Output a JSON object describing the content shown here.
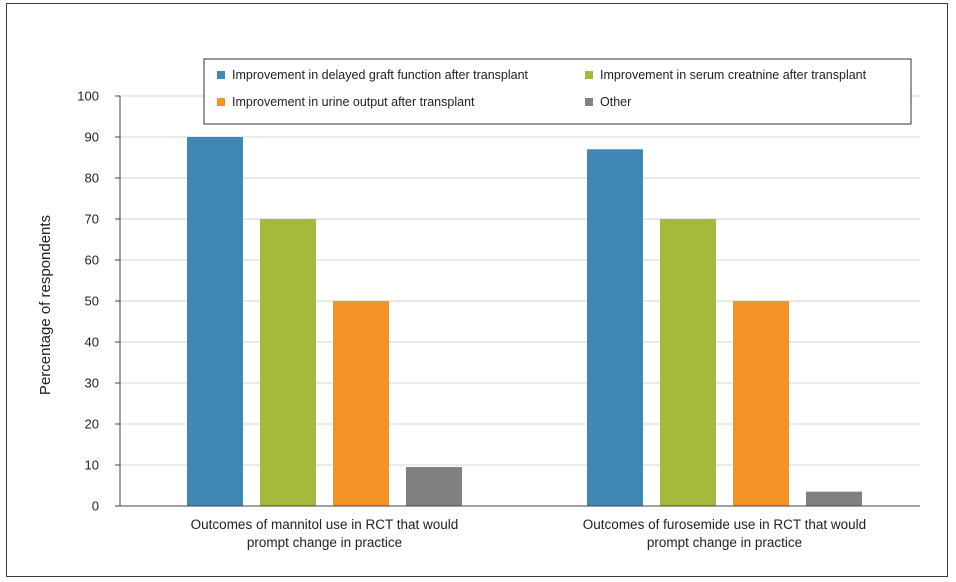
{
  "chart_data": {
    "type": "bar",
    "ylabel": "Percentage of respondents",
    "xlabel": "",
    "ylim": [
      0,
      100
    ],
    "yticks": [
      0,
      10,
      20,
      30,
      40,
      50,
      60,
      70,
      80,
      90,
      100
    ],
    "grid": true,
    "legend_position": "top-right",
    "categories": [
      [
        "Outcomes of mannitol use in RCT that would",
        "prompt change in practice"
      ],
      [
        "Outcomes of furosemide use in RCT that would",
        "prompt change in practice"
      ]
    ],
    "series": [
      {
        "name": "Improvement in delayed graft function after transplant",
        "color": "#3f87b5",
        "values": [
          90,
          87
        ]
      },
      {
        "name": "Improvement in serum creatnine after transplant",
        "color": "#a6b93a",
        "values": [
          70,
          70
        ]
      },
      {
        "name": "Improvement in urine output after transplant",
        "color": "#f39325",
        "values": [
          50,
          50
        ]
      },
      {
        "name": "Other",
        "color": "#808080",
        "values": [
          9.5,
          3.5
        ]
      }
    ]
  }
}
